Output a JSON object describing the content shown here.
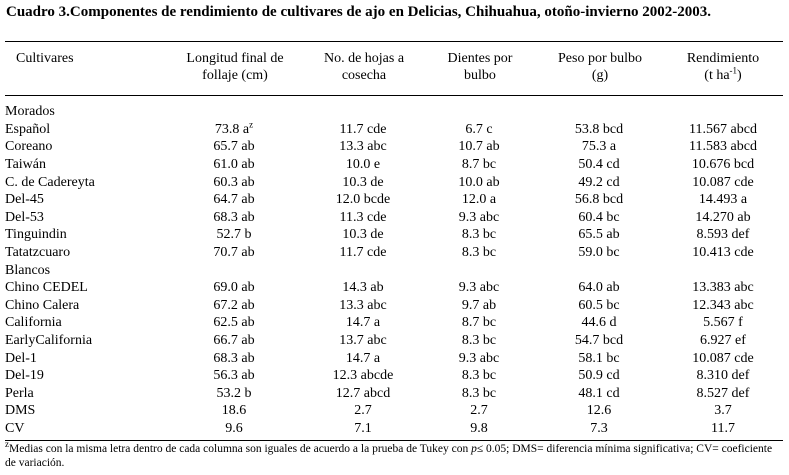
{
  "title": "Cuadro 3.Componentes de rendimiento de cultivares de ajo en Delicias, Chihuahua, otoño-invierno 2002-2003.",
  "headers": {
    "cultivar": "Cultivares",
    "longitud": [
      "Longitud final de",
      "follaje (cm)"
    ],
    "hojas": [
      "No. de hojas a",
      "cosecha"
    ],
    "dientes": [
      "Dientes por",
      "bulbo"
    ],
    "peso": [
      "Peso por bulbo",
      "(g)"
    ],
    "rendimiento": [
      "Rendimiento",
      "(t ha",
      "-1",
      ")"
    ]
  },
  "groups": [
    {
      "name": "Morados",
      "rows": [
        {
          "cultivar": "Español",
          "longitud": "73.8 a",
          "longitud_sup": "z",
          "hojas": "11.7 cde",
          "dientes": "6.7 c",
          "peso": "53.8 bcd",
          "rendimiento": "11.567 abcd"
        },
        {
          "cultivar": "Coreano",
          "longitud": "65.7 ab",
          "hojas": "13.3 abc",
          "dientes": "10.7 ab",
          "peso": "75.3 a",
          "rendimiento": "11.583 abcd"
        },
        {
          "cultivar": "Taiwán",
          "longitud": "61.0 ab",
          "hojas": "10.0 e",
          "dientes": "8.7 bc",
          "peso": "50.4 cd",
          "rendimiento": "10.676 bcd"
        },
        {
          "cultivar": "C. de Cadereyta",
          "longitud": "60.3 ab",
          "hojas": "10.3 de",
          "dientes": "10.0 ab",
          "peso": "49.2 cd",
          "rendimiento": "10.087 cde"
        },
        {
          "cultivar": "Del-45",
          "longitud": "64.7 ab",
          "hojas": "12.0 bcde",
          "dientes": "12.0 a",
          "peso": "56.8 bcd",
          "rendimiento": "14.493 a"
        },
        {
          "cultivar": "Del-53",
          "longitud": "68.3 ab",
          "hojas": "11.3 cde",
          "dientes": "9.3 abc",
          "peso": "60.4 bc",
          "rendimiento": "14.270 ab"
        },
        {
          "cultivar": "Tinguindin",
          "longitud": "52.7 b",
          "hojas": "10.3 de",
          "dientes": "8.3 bc",
          "peso": "65.5 ab",
          "rendimiento": "8.593 def"
        },
        {
          "cultivar": "Tatatzcuaro",
          "longitud": "70.7 ab",
          "hojas": "11.7 cde",
          "dientes": "8.3 bc",
          "peso": "59.0 bc",
          "rendimiento": "10.413 cde"
        }
      ]
    },
    {
      "name": "Blancos",
      "rows": [
        {
          "cultivar": "Chino CEDEL",
          "longitud": "69.0 ab",
          "hojas": "14.3 ab",
          "dientes": "9.3 abc",
          "peso": "64.0 ab",
          "rendimiento": "13.383 abc"
        },
        {
          "cultivar": "Chino Calera",
          "longitud": "67.2 ab",
          "hojas": "13.3 abc",
          "dientes": "9.7 ab",
          "peso": "60.5 bc",
          "rendimiento": "12.343 abc"
        },
        {
          "cultivar": "California",
          "longitud": "62.5 ab",
          "hojas": "14.7 a",
          "dientes": "8.7 bc",
          "peso": "44.6 d",
          "rendimiento": "5.567 f"
        },
        {
          "cultivar": "EarlyCalifornia",
          "longitud": "66.7 ab",
          "hojas": "13.7 abc",
          "dientes": "8.3 bc",
          "peso": "54.7 bcd",
          "rendimiento": "6.927 ef"
        },
        {
          "cultivar": "Del-1",
          "longitud": "68.3 ab",
          "hojas": "14.7 a",
          "dientes": "9.3 abc",
          "peso": "58.1 bc",
          "rendimiento": "10.087 cde"
        },
        {
          "cultivar": "Del-19",
          "longitud": "56.3 ab",
          "hojas": "12.3 abcde",
          "dientes": "8.3 bc",
          "peso": "50.9 cd",
          "rendimiento": "8.310 def"
        },
        {
          "cultivar": "Perla",
          "longitud": "53.2 b",
          "hojas": "12.7 abcd",
          "dientes": "8.3 bc",
          "peso": "48.1 cd",
          "rendimiento": "8.527 def"
        }
      ]
    }
  ],
  "stats": [
    {
      "cultivar": "DMS",
      "longitud": "18.6",
      "hojas": "2.7",
      "dientes": "2.7",
      "peso": "12.6",
      "rendimiento": "3.7"
    },
    {
      "cultivar": "CV",
      "longitud": "9.6",
      "hojas": "7.1",
      "dientes": "9.8",
      "peso": "7.3",
      "rendimiento": "11.7"
    }
  ],
  "footnote": {
    "marker": "z",
    "text_before": "Medias con la misma letra dentro de cada columna son iguales de acuerdo a la prueba de Tukey con ",
    "p_symbol": "p",
    "text_after": "≤ 0.05; DMS= diferencia mínima significativa; CV= coeficiente de variación."
  }
}
